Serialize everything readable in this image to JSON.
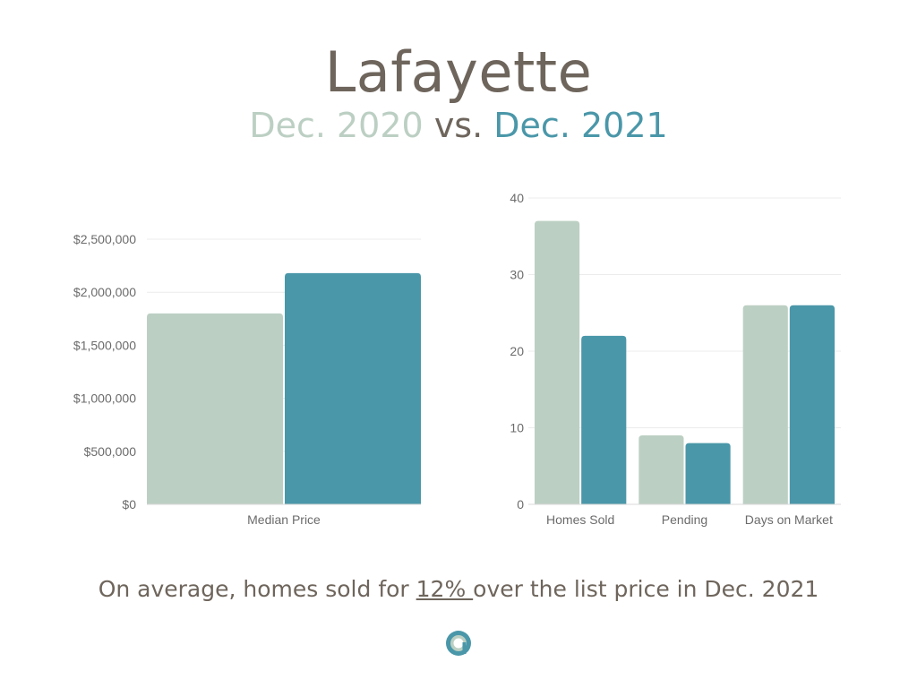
{
  "header": {
    "title": "Lafayette",
    "subtitle_part1": "Dec. 2020",
    "subtitle_part2": "vs.",
    "subtitle_part3": "Dec. 2021"
  },
  "colors": {
    "dec_2020": "#bccfc3",
    "dec_2021": "#4a97a9",
    "text": "#6e655c"
  },
  "chart_data": [
    {
      "type": "bar",
      "categories": [
        "Median Price"
      ],
      "series": [
        {
          "name": "Dec. 2020",
          "values": [
            1800000
          ]
        },
        {
          "name": "Dec. 2021",
          "values": [
            2180000
          ]
        }
      ],
      "ylim": [
        0,
        2500000
      ],
      "yticks": [
        0,
        500000,
        1000000,
        1500000,
        2000000,
        2500000
      ],
      "ytick_labels": [
        "$0",
        "$500,000",
        "$1,000,000",
        "$1,500,000",
        "$2,000,000",
        "$2,500,000"
      ],
      "grid": true
    },
    {
      "type": "bar",
      "categories": [
        "Homes Sold",
        "Pending",
        "Days on Market"
      ],
      "series": [
        {
          "name": "Dec. 2020",
          "values": [
            37,
            9,
            26
          ]
        },
        {
          "name": "Dec. 2021",
          "values": [
            22,
            8,
            26
          ]
        }
      ],
      "ylim": [
        0,
        40
      ],
      "yticks": [
        0,
        10,
        20,
        30,
        40
      ],
      "ytick_labels": [
        "0",
        "10",
        "20",
        "30",
        "40"
      ],
      "grid": true
    }
  ],
  "footer": {
    "text_before": "On average, homes sold for ",
    "highlight": "12% ",
    "text_after": "over the list price in Dec. 2021"
  },
  "logo": {
    "icon": "brand-logo-icon"
  }
}
